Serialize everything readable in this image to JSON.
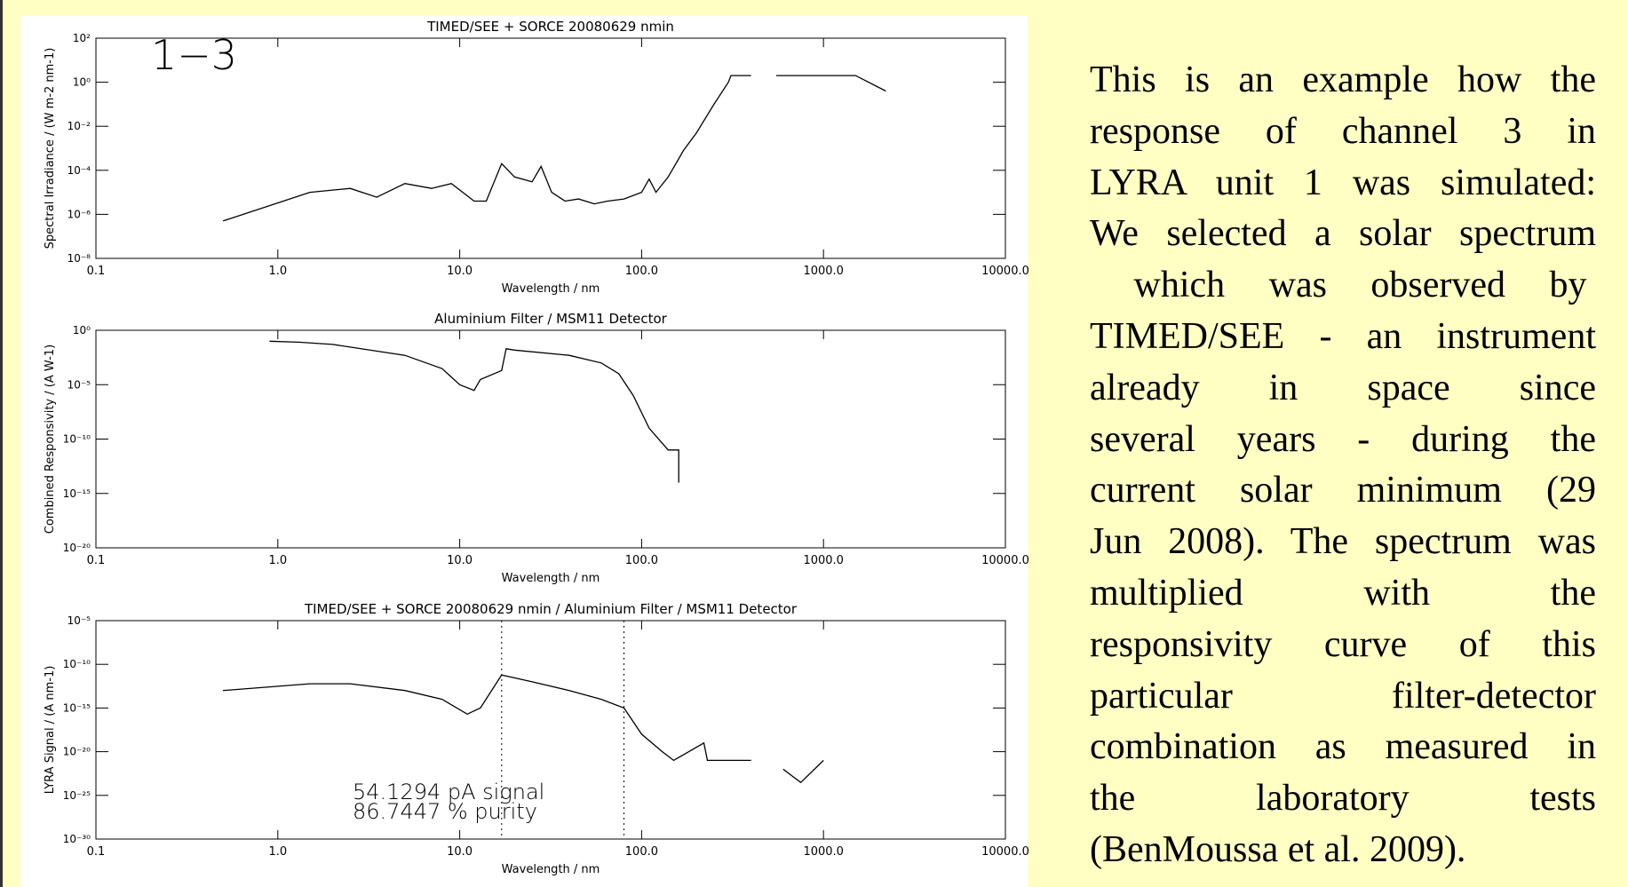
{
  "chart_data": [
    {
      "type": "line",
      "title": "TIMED/SEE + SORCE 20080629 nmin",
      "xlabel": "Wavelength / nm",
      "ylabel": "Spectral Irradiance / (W m-2 nm-1)",
      "xscale": "log",
      "yscale": "log",
      "xlim": [
        0.1,
        10000
      ],
      "ylim": [
        1e-08,
        100
      ],
      "xticks": [
        0.1,
        {
          "value": 1,
          "label": "1.0"
        },
        {
          "value": 10,
          "label": "10.0"
        },
        {
          "value": 100,
          "label": "100.0"
        },
        {
          "value": 1000,
          "label": "1000.0"
        },
        {
          "value": 10000,
          "label": "10000.0"
        }
      ],
      "yticks": [
        {
          "value": 1e-08,
          "label": "10⁻⁸"
        },
        {
          "value": 1e-06,
          "label": "10⁻⁶"
        },
        {
          "value": 0.0001,
          "label": "10⁻⁴"
        },
        {
          "value": 0.01,
          "label": "10⁻²"
        },
        {
          "value": 1,
          "label": "10⁰"
        },
        {
          "value": 100,
          "label": "10²"
        }
      ],
      "annotations": [
        "1−3"
      ],
      "color": "#000000",
      "x": [
        0.5,
        1.5,
        2.5,
        3.5,
        5,
        7,
        9,
        12,
        14,
        17,
        20,
        25,
        28,
        32,
        38,
        45,
        55,
        65,
        80,
        100,
        110,
        120,
        140,
        170,
        200,
        250,
        300,
        310,
        400,
        450,
        550,
        1500,
        2200
      ],
      "values": [
        5e-07,
        1e-05,
        1.5e-05,
        6e-06,
        2.5e-05,
        1.5e-05,
        2.5e-05,
        4e-06,
        4e-06,
        0.0002,
        5e-05,
        3e-05,
        0.00015,
        1e-05,
        4e-06,
        5e-06,
        3e-06,
        4e-06,
        5e-06,
        1e-05,
        4e-05,
        1e-05,
        5e-05,
        0.0008,
        0.005,
        0.1,
        1,
        2,
        2,
        null,
        2,
        2,
        0.4
      ]
    },
    {
      "type": "line",
      "title": "Aluminium Filter / MSM11 Detector",
      "xlabel": "Wavelength / nm",
      "ylabel": "Combined Responsivity / (A W-1)",
      "xscale": "log",
      "yscale": "log",
      "xlim": [
        0.1,
        10000
      ],
      "ylim": [
        1e-20,
        1
      ],
      "xticks": [
        0.1,
        {
          "value": 1,
          "label": "1.0"
        },
        {
          "value": 10,
          "label": "10.0"
        },
        {
          "value": 100,
          "label": "100.0"
        },
        {
          "value": 1000,
          "label": "1000.0"
        },
        {
          "value": 10000,
          "label": "10000.0"
        }
      ],
      "yticks": [
        {
          "value": 1e-20,
          "label": "10⁻²⁰"
        },
        {
          "value": 1e-15,
          "label": "10⁻¹⁵"
        },
        {
          "value": 1e-10,
          "label": "10⁻¹⁰"
        },
        {
          "value": 1e-05,
          "label": "10⁻⁵"
        },
        {
          "value": 1,
          "label": "10⁰"
        }
      ],
      "color": "#000000",
      "x": [
        0.9,
        1.3,
        2,
        5,
        8,
        10,
        12,
        13,
        17,
        18,
        20,
        40,
        60,
        75,
        90,
        110,
        140,
        160,
        160
      ],
      "values": [
        0.1,
        0.08,
        0.05,
        0.005,
        0.0003,
        1e-05,
        3e-06,
        3e-05,
        0.0002,
        0.02,
        0.015,
        0.005,
        0.001,
        0.0001,
        1e-06,
        1e-09,
        1e-11,
        1e-11,
        1e-14
      ]
    },
    {
      "type": "line",
      "title": "TIMED/SEE + SORCE 20080629 nmin / Aluminium Filter / MSM11 Detector",
      "xlabel": "Wavelength / nm",
      "ylabel": "LYRA Signal / (A nm-1)",
      "xscale": "log",
      "yscale": "log",
      "xlim": [
        0.1,
        10000
      ],
      "ylim": [
        1e-30,
        1e-05
      ],
      "xticks": [
        0.1,
        {
          "value": 1,
          "label": "1.0"
        },
        {
          "value": 10,
          "label": "10.0"
        },
        {
          "value": 100,
          "label": "100.0"
        },
        {
          "value": 1000,
          "label": "1000.0"
        },
        {
          "value": 10000,
          "label": "10000.0"
        }
      ],
      "yticks": [
        {
          "value": 1e-30,
          "label": "10⁻³⁰"
        },
        {
          "value": 1e-25,
          "label": "10⁻²⁵"
        },
        {
          "value": 1e-20,
          "label": "10⁻²⁰"
        },
        {
          "value": 1e-15,
          "label": "10⁻¹⁵"
        },
        {
          "value": 1e-10,
          "label": "10⁻¹⁰"
        },
        {
          "value": 1e-05,
          "label": "10⁻⁵"
        }
      ],
      "annotations": [
        "54.1294 pA signal",
        "86.7447 % purity"
      ],
      "vlines": [
        17,
        80
      ],
      "color": "#000000",
      "x": [
        0.5,
        1.5,
        2.5,
        5,
        8,
        11,
        13,
        17,
        25,
        40,
        60,
        80,
        100,
        130,
        150,
        220,
        230,
        400,
        500,
        600,
        750,
        1000
      ],
      "values": [
        1e-13,
        6e-13,
        6e-13,
        1e-13,
        1e-14,
        2e-16,
        1e-15,
        6e-12,
        1e-12,
        1e-13,
        1e-14,
        1e-15,
        1e-18,
        1e-20,
        1e-21,
        1e-19,
        1e-21,
        1e-21,
        null,
        1e-22,
        3e-24,
        1e-21
      ]
    }
  ],
  "text": {
    "lines": [
      "This is an example how the",
      "response of channel 3 in",
      "LYRA unit 1 was simulated:",
      "We selected a solar spectrum",
      " which was observed by ",
      "TIMED/SEE - an instrument",
      "already in space since",
      "several years - during the",
      "current solar minimum (29",
      "Jun 2008). The spectrum was",
      "multiplied with the",
      "responsivity curve of this",
      "particular filter-detector",
      "combination as measured in",
      "the laboratory tests",
      "(BenMoussa et al. 2009)."
    ]
  }
}
